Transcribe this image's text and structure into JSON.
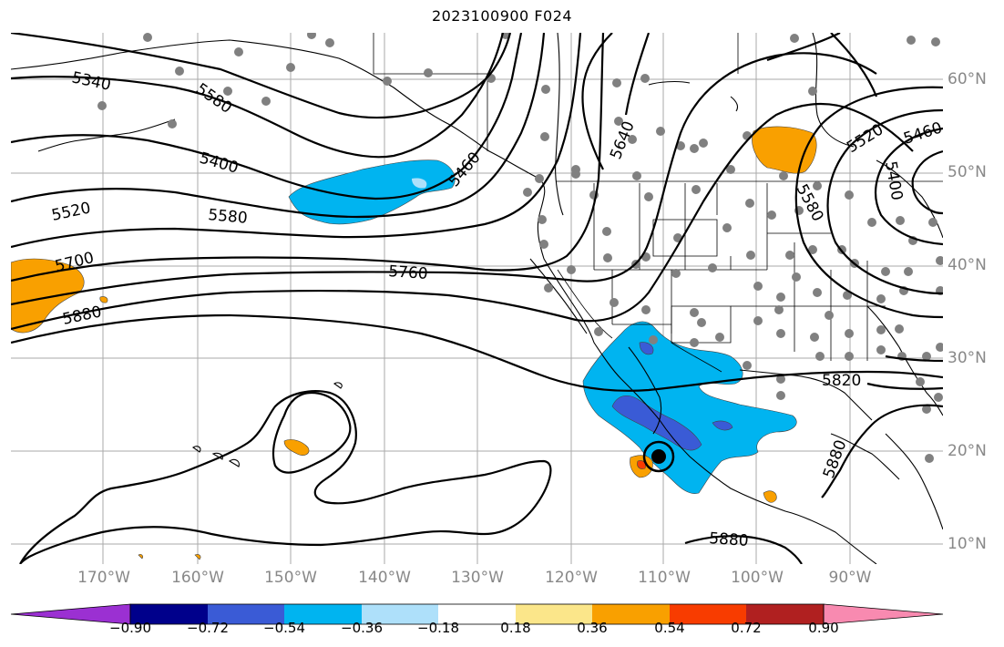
{
  "title": "2023100900 F024",
  "axes": {
    "lat_labels": [
      "60°N",
      "50°N",
      "40°N",
      "30°N",
      "20°N",
      "10°N"
    ],
    "lon_labels": [
      "170°W",
      "160°W",
      "150°W",
      "140°W",
      "130°W",
      "120°W",
      "110°W",
      "100°W",
      "90°W"
    ]
  },
  "contours": {
    "labels": [
      "5340",
      "5400",
      "5460",
      "5520",
      "5580",
      "5640",
      "5700",
      "5760",
      "5820",
      "5880",
      "5880",
      "5880",
      "5520",
      "5460",
      "5400",
      "5580",
      "5580"
    ]
  },
  "colorbar": {
    "ticks": [
      "−0.90",
      "−0.72",
      "−0.54",
      "−0.36",
      "−0.18",
      "0.18",
      "0.36",
      "0.54",
      "0.72",
      "0.90"
    ],
    "colors": [
      "#9b30d2",
      "#00008b",
      "#3a5bd6",
      "#00b4f0",
      "#aee0fa",
      "#ffffff",
      "#fbe68a",
      "#f9a000",
      "#f83c00",
      "#b02020",
      "#f88ab0"
    ]
  },
  "colors": {
    "contour": "#000000",
    "station": "#808080",
    "grid": "#aaaaaa",
    "border": "#000000"
  },
  "marker": {
    "type": "cyclone-center"
  }
}
